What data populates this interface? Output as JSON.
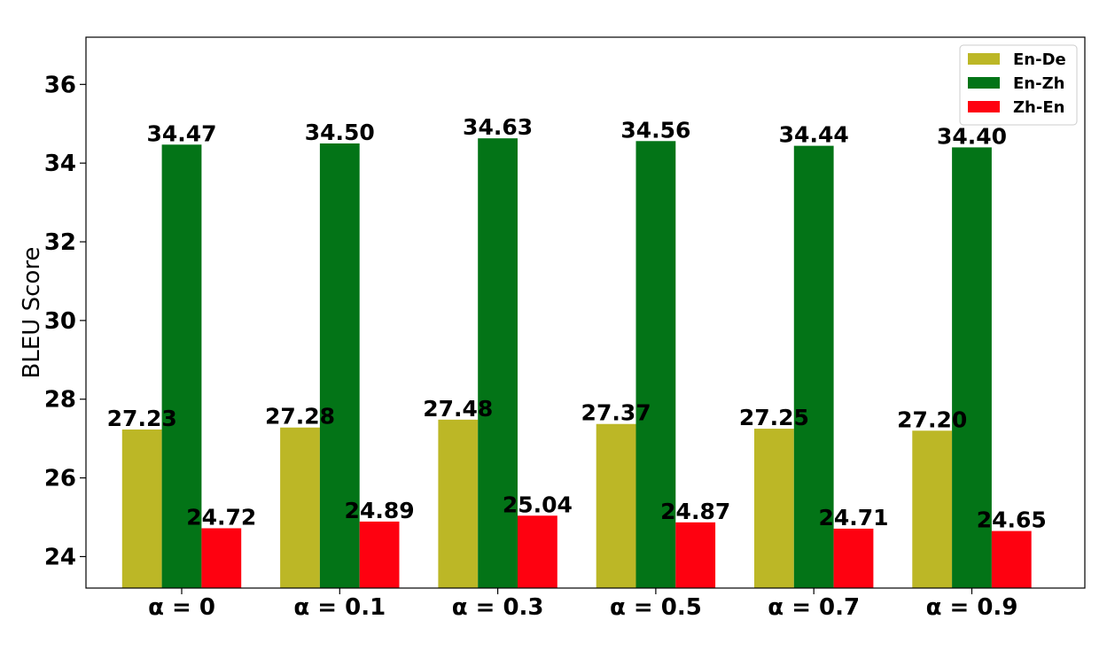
{
  "chart_data": {
    "type": "bar",
    "categories": [
      "α = 0",
      "α = 0.1",
      "α = 0.3",
      "α = 0.5",
      "α = 0.7",
      "α = 0.9"
    ],
    "series": [
      {
        "name": "En-De",
        "color": "#bcb726",
        "values": [
          27.23,
          27.28,
          27.48,
          27.37,
          27.25,
          27.2
        ],
        "labels": [
          "27.23",
          "27.28",
          "27.48",
          "27.37",
          "27.25",
          "27.20"
        ]
      },
      {
        "name": "En-Zh",
        "color": "#037417",
        "values": [
          34.47,
          34.5,
          34.63,
          34.56,
          34.44,
          34.4
        ],
        "labels": [
          "34.47",
          "34.50",
          "34.63",
          "34.56",
          "34.44",
          "34.40"
        ]
      },
      {
        "name": "Zh-En",
        "color": "#fe0110",
        "values": [
          24.72,
          24.89,
          25.04,
          24.87,
          24.71,
          24.65
        ],
        "labels": [
          "24.72",
          "24.89",
          "25.04",
          "24.87",
          "24.71",
          "24.65"
        ]
      }
    ],
    "title": "",
    "xlabel": "",
    "ylabel": "BLEU Score",
    "ylim": [
      23.2,
      37.2
    ],
    "yticks": [
      24,
      26,
      28,
      30,
      32,
      34,
      36
    ],
    "ytick_labels": [
      "24",
      "26",
      "28",
      "30",
      "32",
      "34",
      "36"
    ],
    "grid": false,
    "legend_position": "top-right"
  }
}
